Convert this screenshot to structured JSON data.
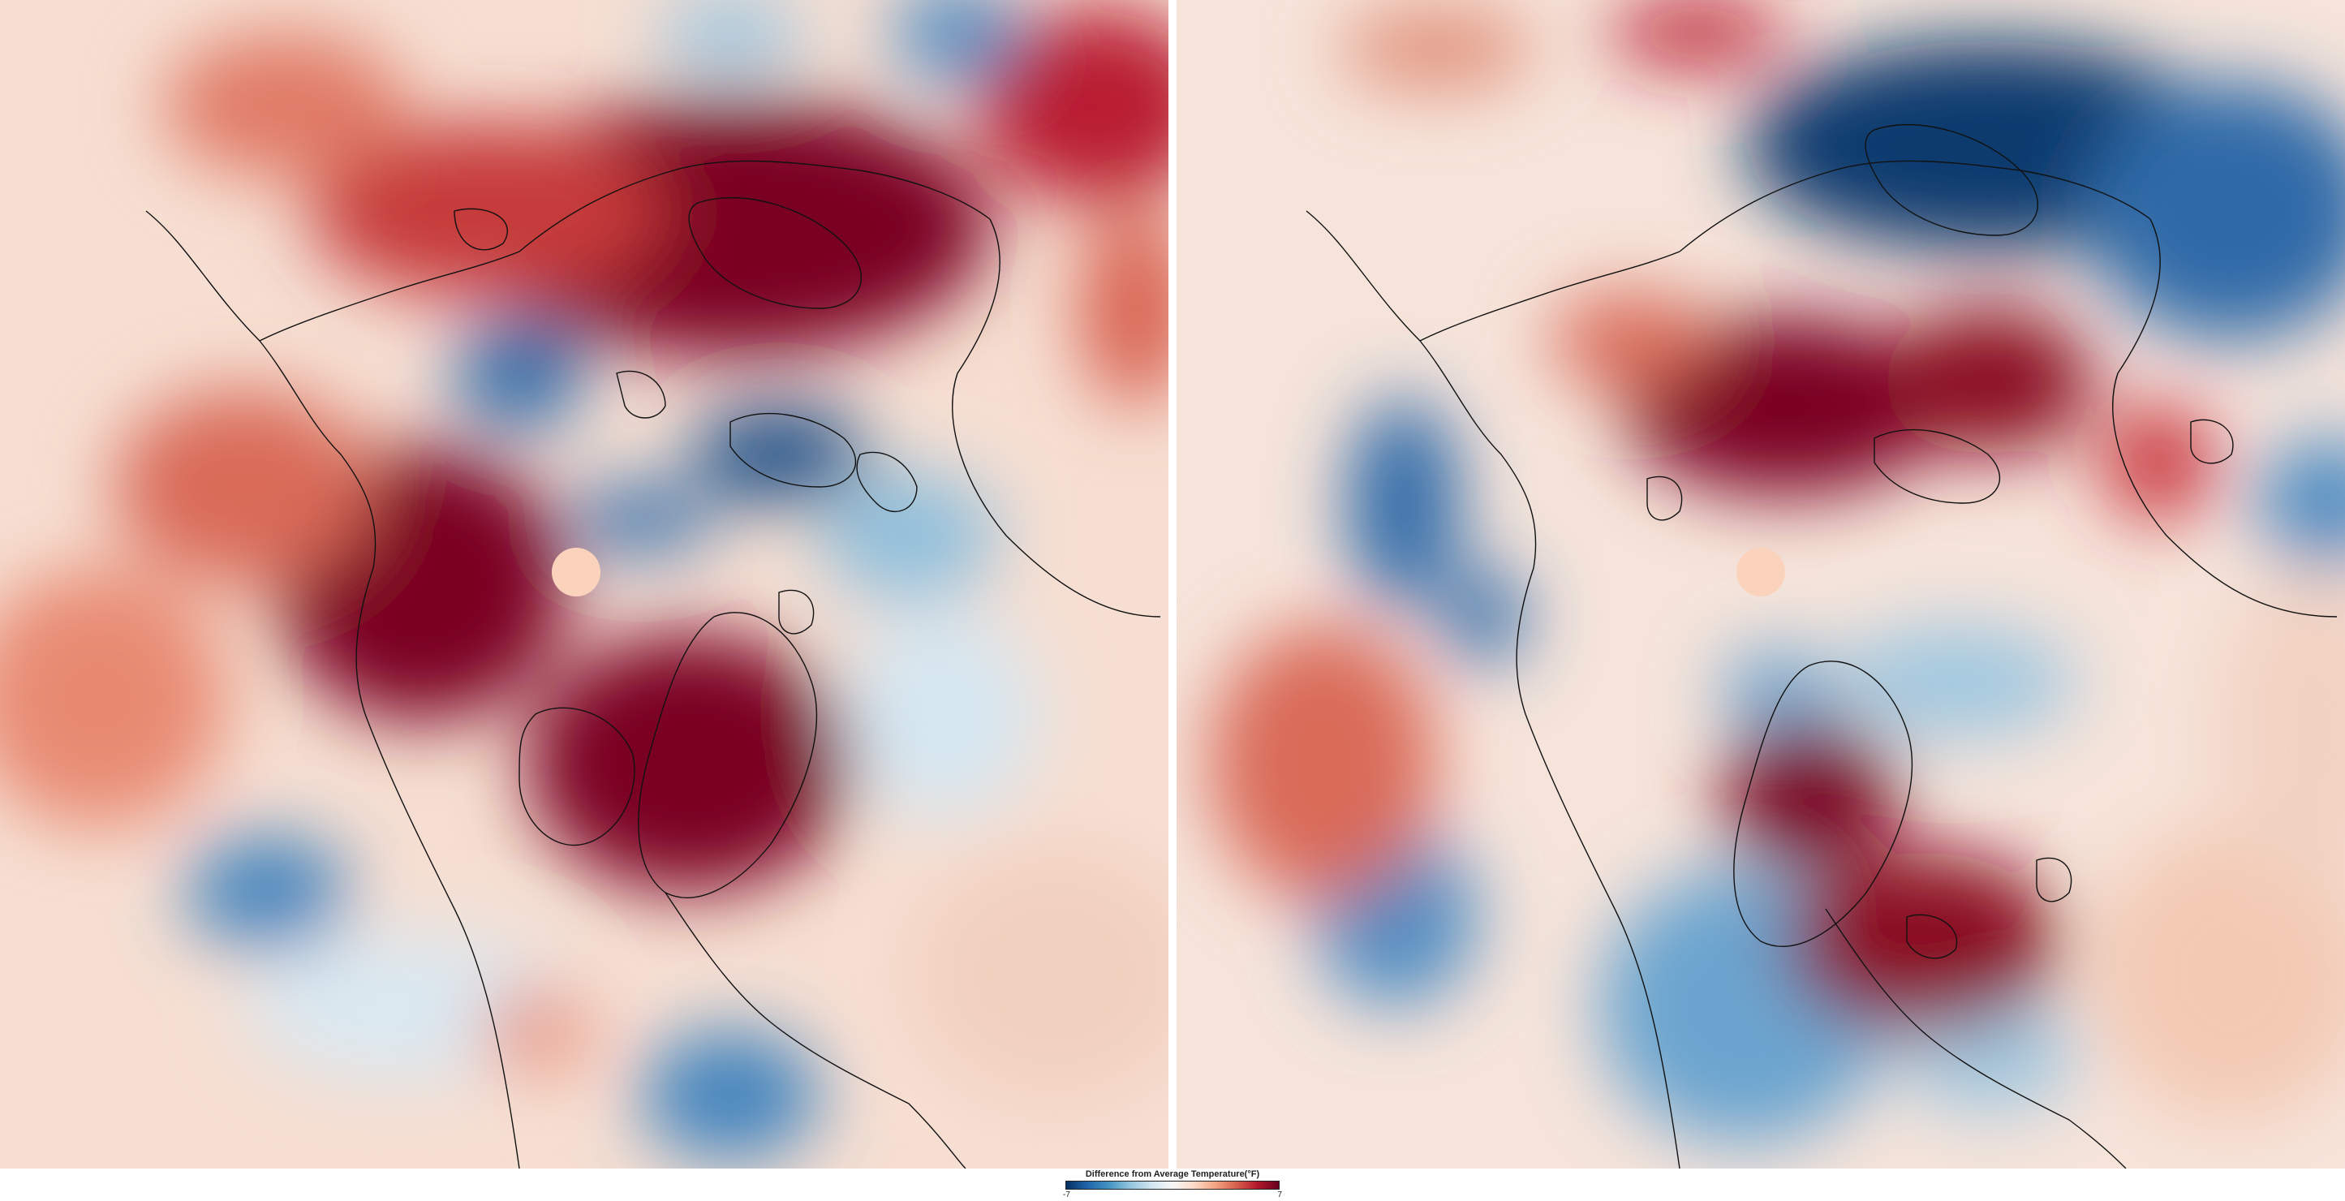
{
  "legend": {
    "title": "Difference from Average Temperature(°F)",
    "min": "-7",
    "max": "7",
    "gradient": [
      "#053061",
      "#2166ac",
      "#4393c3",
      "#92c5de",
      "#d1e5f0",
      "#f7f7f7",
      "#fddbc7",
      "#f4a582",
      "#d6604d",
      "#b2182b",
      "#67001f"
    ]
  },
  "maps": [
    {
      "name": "left",
      "projection": "north-polar",
      "ocean_tint": "#f3d6c8"
    },
    {
      "name": "right",
      "projection": "north-polar",
      "ocean_tint": "#f3d6c8"
    }
  ]
}
